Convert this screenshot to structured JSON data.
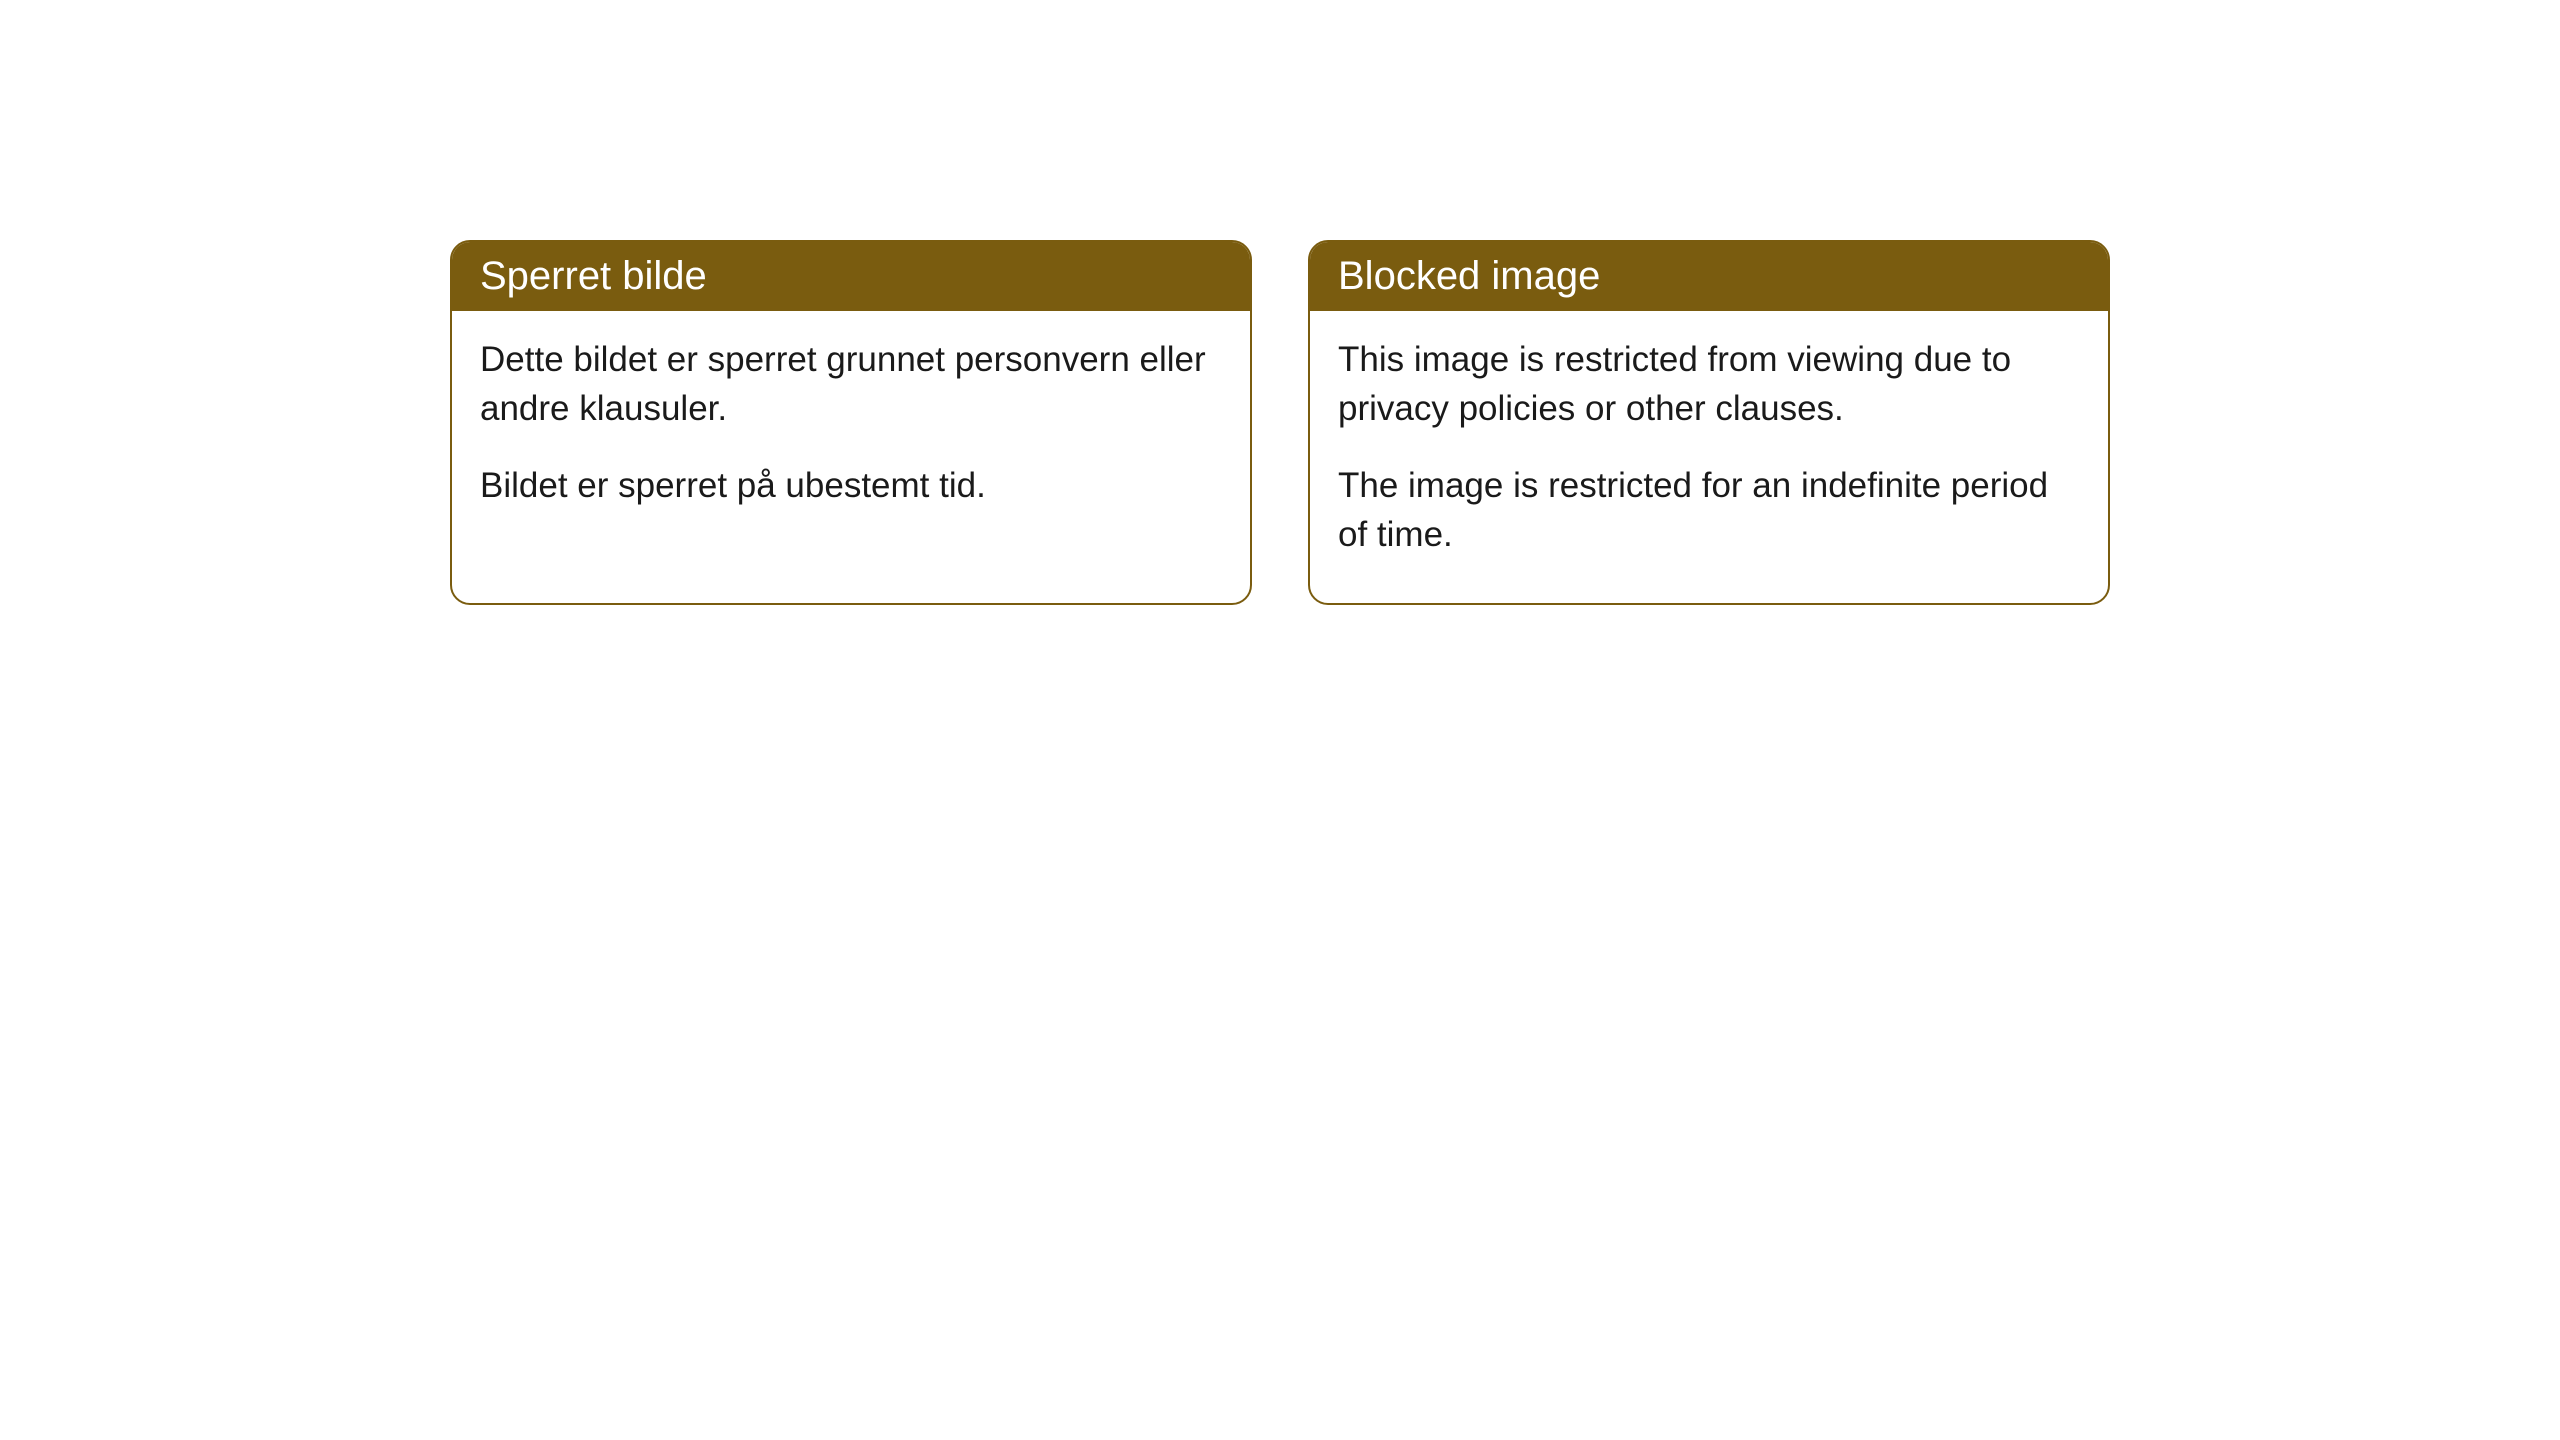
{
  "cards": [
    {
      "title": "Sperret bilde",
      "paragraph1": "Dette bildet er sperret grunnet personvern eller andre klausuler.",
      "paragraph2": "Bildet er sperret på ubestemt tid."
    },
    {
      "title": "Blocked image",
      "paragraph1": "This image is restricted from viewing due to privacy policies or other clauses.",
      "paragraph2": "The image is restricted for an indefinite period of time."
    }
  ],
  "styling": {
    "header_background": "#7a5c0f",
    "header_text_color": "#ffffff",
    "border_color": "#7a5c0f",
    "body_background": "#ffffff",
    "body_text_color": "#1a1a1a",
    "border_radius": 20,
    "header_fontsize": 40,
    "body_fontsize": 35
  }
}
